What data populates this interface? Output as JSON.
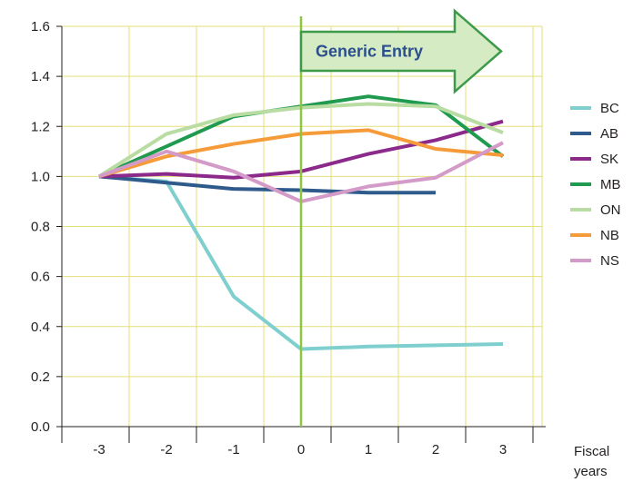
{
  "chart_data": {
    "type": "line",
    "x": [
      -3,
      -2,
      -1,
      0,
      1,
      2,
      3
    ],
    "xlabel": "Fiscal years",
    "ylabel": "",
    "ylim": [
      0.0,
      1.6
    ],
    "yticks": [
      0.0,
      0.2,
      0.4,
      0.6,
      0.8,
      1.0,
      1.2,
      1.4,
      1.6
    ],
    "ytick_labels": [
      "0.0",
      "0.2",
      "0.4",
      "0.6",
      "0.8",
      "1.0",
      "1.2",
      "1.4",
      "1.6"
    ],
    "xtick_labels": [
      "-3",
      "-2",
      "-1",
      "0",
      "1",
      "2",
      "3"
    ],
    "grid": "vertical and horizontal, light",
    "legend_position": "right",
    "annotation": {
      "text": "Generic Entry",
      "at_x": 0,
      "shape": "right-pointing arrow",
      "line_color": "#8dc63f",
      "fill_color": "#d5ebc4",
      "border_color": "#3c9a49"
    },
    "series": [
      {
        "name": "BC",
        "color": "#7fcfcf",
        "values": [
          1.0,
          0.98,
          0.52,
          0.31,
          0.32,
          0.325,
          0.33
        ]
      },
      {
        "name": "AB",
        "color": "#2e5a8c",
        "values": [
          1.0,
          0.975,
          0.95,
          0.945,
          0.935,
          0.935,
          null
        ]
      },
      {
        "name": "SK",
        "color": "#8c2a8c",
        "values": [
          1.0,
          1.01,
          0.995,
          1.02,
          1.09,
          1.145,
          1.22
        ]
      },
      {
        "name": "MB",
        "color": "#1f9a4e",
        "values": [
          1.0,
          1.12,
          1.24,
          1.28,
          1.32,
          1.285,
          1.08
        ]
      },
      {
        "name": "ON",
        "color": "#b9dca2",
        "values": [
          1.0,
          1.17,
          1.245,
          1.275,
          1.29,
          1.28,
          1.175
        ]
      },
      {
        "name": "NB",
        "color": "#f59b3a",
        "values": [
          1.0,
          1.08,
          1.13,
          1.17,
          1.185,
          1.11,
          1.085
        ]
      },
      {
        "name": "NS",
        "color": "#d49ac8",
        "values": [
          1.0,
          1.1,
          1.02,
          0.9,
          0.96,
          0.995,
          1.135
        ]
      }
    ]
  }
}
